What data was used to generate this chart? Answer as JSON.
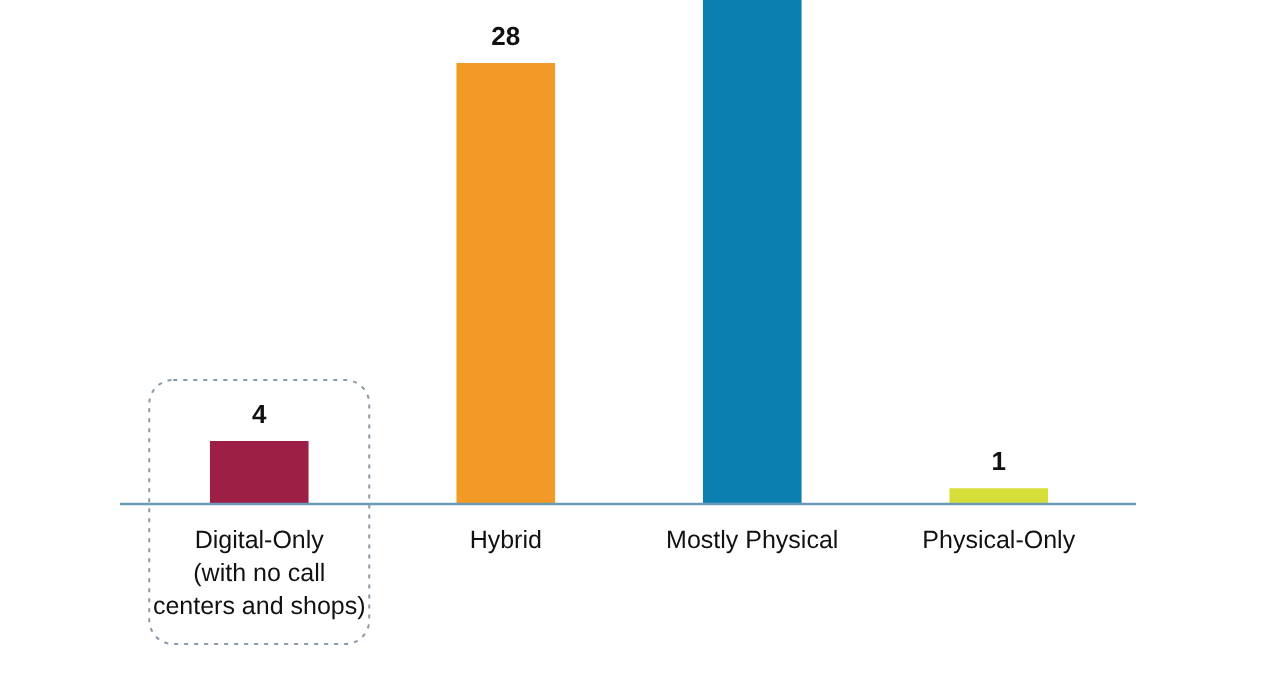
{
  "chart_data": {
    "type": "bar",
    "categories": [
      "Digital-Only\n(with no call\ncenters and shops)",
      "Hybrid",
      "Mostly Physical",
      "Physical-Only"
    ],
    "values": [
      4,
      28,
      32,
      1
    ],
    "value_labels": [
      "4",
      "28",
      null,
      "1"
    ],
    "colors": [
      "#9e1f45",
      "#f39a26",
      "#0a7fb0",
      "#d6df3a"
    ],
    "relative": false
  }
}
